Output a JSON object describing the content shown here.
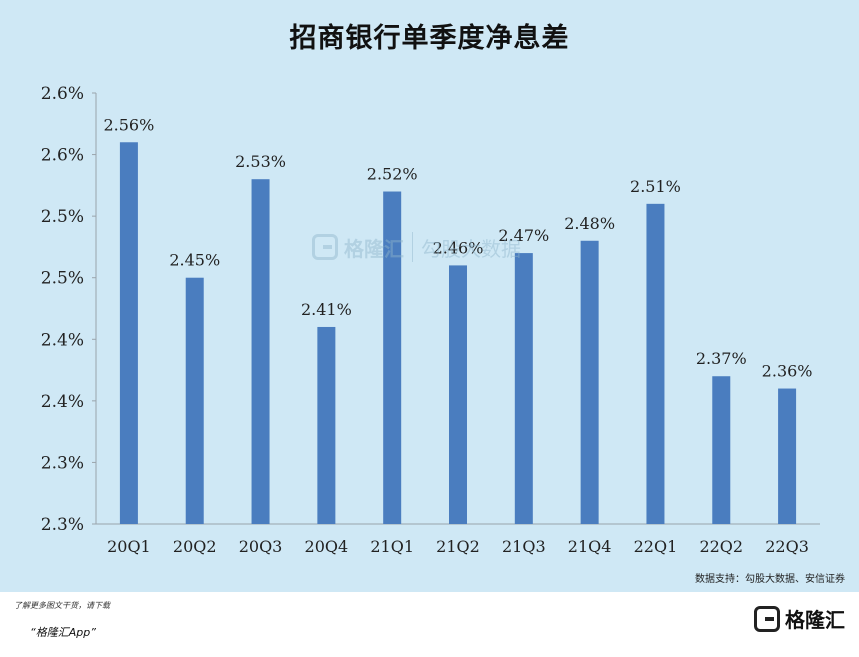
{
  "header": {
    "title": "招商银行单季度净息差"
  },
  "source": {
    "text": "数据支持：勾股大数据、安信证券"
  },
  "watermark": {
    "brand": "格隆汇",
    "partner": "勾股大数据"
  },
  "footer": {
    "note": "了解更多图文干货，请下载",
    "app": "“格隆汇App”",
    "brand": "格隆汇"
  },
  "colors": {
    "background": "#cfe8f5",
    "bar": "#4a7dbf"
  },
  "chart_data": {
    "type": "bar",
    "title": "招商银行单季度净息差",
    "categories": [
      "20Q1",
      "20Q2",
      "20Q3",
      "20Q4",
      "21Q1",
      "21Q2",
      "21Q3",
      "21Q4",
      "22Q1",
      "22Q2",
      "22Q3"
    ],
    "values": [
      2.56,
      2.45,
      2.53,
      2.41,
      2.52,
      2.46,
      2.47,
      2.48,
      2.51,
      2.37,
      2.36
    ],
    "data_labels": [
      "2.56%",
      "2.45%",
      "2.53%",
      "2.41%",
      "2.52%",
      "2.46%",
      "2.47%",
      "2.48%",
      "2.51%",
      "2.37%",
      "2.36%"
    ],
    "ylim": [
      2.25,
      2.6
    ],
    "yticks": [
      2.25,
      2.3,
      2.35,
      2.4,
      2.45,
      2.5,
      2.55,
      2.6
    ],
    "ytick_labels": [
      "2.3%",
      "2.3%",
      "2.4%",
      "2.4%",
      "2.5%",
      "2.5%",
      "2.6%",
      "2.6%"
    ],
    "xlabel": "",
    "ylabel": "",
    "grid": false,
    "legend": "none"
  }
}
